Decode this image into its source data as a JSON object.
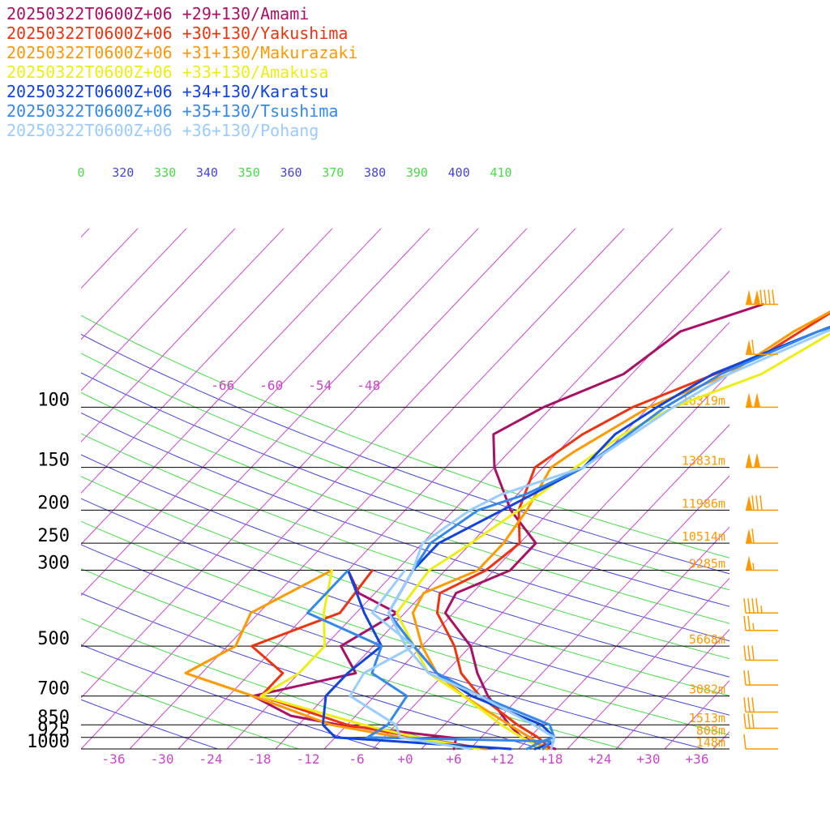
{
  "chart_data": {
    "type": "line",
    "title": "",
    "xlabel": "",
    "ylabel": "",
    "xlim": [
      -40,
      40
    ],
    "ylim": [
      1000,
      50
    ],
    "y_scale": "log",
    "x_ticks": [
      "-36",
      "-30",
      "-24",
      "-18",
      "-12",
      "-6",
      "+0",
      "+6",
      "+12",
      "+18",
      "+24",
      "+30",
      "+36"
    ],
    "x_tick_values": [
      -36,
      -30,
      -24,
      -18,
      -12,
      -6,
      0,
      6,
      12,
      18,
      24,
      30,
      36
    ],
    "pressure_levels": [
      {
        "p": 100,
        "label": "100",
        "height": "16319m"
      },
      {
        "p": 150,
        "label": "150",
        "height": "13831m"
      },
      {
        "p": 200,
        "label": "200",
        "height": "11986m"
      },
      {
        "p": 250,
        "label": "250",
        "height": "10514m"
      },
      {
        "p": 300,
        "label": "300",
        "height": "9285m"
      },
      {
        "p": 500,
        "label": "500",
        "height": "5668m"
      },
      {
        "p": 700,
        "label": "700",
        "height": "3082m"
      },
      {
        "p": 850,
        "label": "850",
        "height": "1513m"
      },
      {
        "p": 925,
        "label": "925",
        "height": "808m"
      },
      {
        "p": 1000,
        "label": "1000",
        "height": "148m"
      }
    ],
    "isotherm_labels": [
      {
        "t": -66,
        "label": "-66"
      },
      {
        "t": -60,
        "label": "-60"
      },
      {
        "t": -54,
        "label": "-54"
      },
      {
        "t": -48,
        "label": "-48"
      }
    ],
    "theta_labels": [
      {
        "label": "0",
        "color": "#44dd44"
      },
      {
        "label": "320",
        "color": "#4444dd"
      },
      {
        "label": "330",
        "color": "#44dd44"
      },
      {
        "label": "340",
        "color": "#4444dd"
      },
      {
        "label": "350",
        "color": "#44dd44"
      },
      {
        "label": "360",
        "color": "#4444dd"
      },
      {
        "label": "370",
        "color": "#44dd44"
      },
      {
        "label": "380",
        "color": "#4444dd"
      },
      {
        "label": "390",
        "color": "#44dd44"
      },
      {
        "label": "400",
        "color": "#4444dd"
      },
      {
        "label": "410",
        "color": "#44dd44"
      }
    ],
    "legend_placement": "top-left",
    "series": [
      {
        "name": "20250322T0600Z+06 +29+130/Amami",
        "color": "#aa1166",
        "temperature": [
          [
            1000,
            18.5
          ],
          [
            970,
            16
          ],
          [
            925,
            13
          ],
          [
            850,
            10
          ],
          [
            700,
            4
          ],
          [
            600,
            0
          ],
          [
            500,
            -4
          ],
          [
            400,
            -11
          ],
          [
            350,
            -12
          ],
          [
            300,
            -8
          ],
          [
            250,
            -8
          ],
          [
            200,
            -15
          ],
          [
            150,
            -22
          ],
          [
            120,
            -26
          ],
          [
            100,
            -23
          ],
          [
            80,
            -17
          ],
          [
            60,
            -15
          ],
          [
            50,
            -8
          ]
        ],
        "dewpoint": [
          [
            1000,
            6
          ],
          [
            930,
            5
          ],
          [
            850,
            -11
          ],
          [
            800,
            -18
          ],
          [
            700,
            -25
          ],
          [
            600,
            -15
          ],
          [
            500,
            -20
          ],
          [
            400,
            -17
          ],
          [
            350,
            -24
          ],
          [
            300,
            -28
          ]
        ]
      },
      {
        "name": "20250322T0600Z+06 +30+130/Yakushima",
        "color": "#ee3311",
        "temperature": [
          [
            1000,
            18
          ],
          [
            925,
            15
          ],
          [
            850,
            11
          ],
          [
            700,
            3
          ],
          [
            600,
            -2
          ],
          [
            500,
            -6
          ],
          [
            400,
            -12
          ],
          [
            350,
            -14
          ],
          [
            300,
            -11
          ],
          [
            250,
            -10
          ],
          [
            200,
            -14
          ],
          [
            150,
            -17
          ],
          [
            120,
            -15
          ],
          [
            100,
            -12
          ],
          [
            70,
            -2
          ],
          [
            50,
            2
          ]
        ],
        "dewpoint": [
          [
            1000,
            10
          ],
          [
            925,
            0
          ],
          [
            850,
            -10
          ],
          [
            700,
            -24
          ],
          [
            600,
            -24
          ],
          [
            500,
            -31
          ],
          [
            400,
            -24
          ],
          [
            300,
            -25
          ]
        ]
      },
      {
        "name": "20250322T0600Z+06 +31+130/Makurazaki",
        "color": "#ff9900",
        "temperature": [
          [
            1000,
            17.5
          ],
          [
            925,
            14
          ],
          [
            850,
            10
          ],
          [
            700,
            1
          ],
          [
            600,
            -5
          ],
          [
            500,
            -10
          ],
          [
            400,
            -15
          ],
          [
            350,
            -16
          ],
          [
            300,
            -12
          ],
          [
            250,
            -12
          ],
          [
            200,
            -13
          ],
          [
            150,
            -15
          ],
          [
            135,
            -14
          ],
          [
            100,
            -10
          ],
          [
            80,
            -4
          ],
          [
            60,
            -1
          ],
          [
            50,
            2
          ]
        ],
        "dewpoint": [
          [
            1000,
            10
          ],
          [
            925,
            -2
          ],
          [
            850,
            -12
          ],
          [
            700,
            -25
          ],
          [
            600,
            -36
          ],
          [
            500,
            -33
          ],
          [
            400,
            -35
          ],
          [
            300,
            -30
          ]
        ]
      },
      {
        "name": "20250322T0600Z+06 +33+130/Amakusa",
        "color": "#eeee11",
        "temperature": [
          [
            1000,
            17
          ],
          [
            925,
            13
          ],
          [
            850,
            9
          ],
          [
            700,
            1
          ],
          [
            600,
            -6
          ],
          [
            500,
            -11
          ],
          [
            400,
            -17
          ],
          [
            300,
            -18
          ],
          [
            250,
            -16
          ],
          [
            200,
            -14
          ],
          [
            150,
            -12
          ],
          [
            120,
            -10
          ],
          [
            100,
            -7
          ],
          [
            80,
            0
          ],
          [
            60,
            4
          ],
          [
            50,
            5
          ]
        ],
        "dewpoint": [
          [
            1000,
            9
          ],
          [
            925,
            0
          ],
          [
            850,
            -8
          ],
          [
            700,
            -24
          ],
          [
            600,
            -22
          ],
          [
            500,
            -22
          ],
          [
            400,
            -26
          ],
          [
            300,
            -30
          ]
        ]
      },
      {
        "name": "20250322T0600Z+06 +34+130/Karatsu",
        "color": "#1144dd",
        "temperature": [
          [
            1000,
            16
          ],
          [
            960,
            17.5
          ],
          [
            925,
            17
          ],
          [
            850,
            14
          ],
          [
            700,
            2
          ],
          [
            600,
            -5
          ],
          [
            500,
            -11
          ],
          [
            400,
            -18
          ],
          [
            300,
            -20
          ],
          [
            250,
            -20
          ],
          [
            200,
            -16
          ],
          [
            150,
            -11
          ],
          [
            120,
            -11
          ],
          [
            100,
            -9
          ],
          [
            80,
            -6
          ],
          [
            60,
            2
          ],
          [
            50,
            8
          ]
        ],
        "dewpoint": [
          [
            1000,
            13
          ],
          [
            925,
            -10
          ],
          [
            850,
            -13
          ],
          [
            700,
            -16
          ],
          [
            600,
            -16
          ],
          [
            500,
            -15
          ],
          [
            400,
            -21
          ],
          [
            300,
            -28
          ]
        ]
      },
      {
        "name": "20250322T0600Z+06 +35+130/Tsushima",
        "color": "#3388ee",
        "temperature": [
          [
            1000,
            15
          ],
          [
            950,
            16
          ],
          [
            925,
            17
          ],
          [
            850,
            15
          ],
          [
            700,
            3
          ],
          [
            600,
            -5
          ],
          [
            500,
            -11
          ],
          [
            400,
            -18
          ],
          [
            300,
            -20
          ],
          [
            250,
            -21
          ],
          [
            200,
            -19
          ],
          [
            180,
            -15
          ],
          [
            150,
            -11
          ],
          [
            100,
            -8
          ],
          [
            80,
            -5
          ],
          [
            60,
            2
          ],
          [
            50,
            10
          ]
        ],
        "dewpoint": [
          [
            1000,
            17
          ],
          [
            950,
            17
          ],
          [
            925,
            -6
          ],
          [
            850,
            -5
          ],
          [
            700,
            -6
          ],
          [
            600,
            -13
          ],
          [
            500,
            -15
          ],
          [
            400,
            -28
          ],
          [
            300,
            -28
          ]
        ]
      },
      {
        "name": "20250322T0600Z+06 +36+130/Pohang",
        "color": "#99ccff",
        "temperature": [
          [
            1000,
            18
          ],
          [
            925,
            17
          ],
          [
            850,
            13
          ],
          [
            700,
            3
          ],
          [
            600,
            -6
          ],
          [
            500,
            -12
          ],
          [
            400,
            -18
          ],
          [
            300,
            -20
          ],
          [
            250,
            -22
          ],
          [
            200,
            -20
          ],
          [
            180,
            -18
          ],
          [
            150,
            -11
          ],
          [
            100,
            -7
          ],
          [
            80,
            -4
          ],
          [
            60,
            3
          ],
          [
            50,
            10
          ]
        ],
        "dewpoint": [
          [
            1000,
            8
          ],
          [
            925,
            -2
          ],
          [
            850,
            -4
          ],
          [
            700,
            -13
          ],
          [
            600,
            -14
          ],
          [
            500,
            -11
          ],
          [
            400,
            -20
          ],
          [
            300,
            -21
          ]
        ]
      }
    ],
    "wind_barbs": [
      {
        "p": 50,
        "dir": 270,
        "speed": 140,
        "color": "#ff9900"
      },
      {
        "p": 70,
        "dir": 270,
        "speed": 60,
        "color": "#ff9900"
      },
      {
        "p": 100,
        "dir": 270,
        "speed": 100,
        "color": "#ff9900"
      },
      {
        "p": 150,
        "dir": 270,
        "speed": 100,
        "color": "#ff9900"
      },
      {
        "p": 200,
        "dir": 270,
        "speed": 80,
        "color": "#ff9900"
      },
      {
        "p": 250,
        "dir": 270,
        "speed": 60,
        "color": "#ff9900"
      },
      {
        "p": 300,
        "dir": 270,
        "speed": 55,
        "color": "#ff9900"
      },
      {
        "p": 400,
        "dir": 260,
        "speed": 45,
        "color": "#ff9900"
      },
      {
        "p": 450,
        "dir": 250,
        "speed": 25,
        "color": "#ff9900"
      },
      {
        "p": 550,
        "dir": 250,
        "speed": 30,
        "color": "#ff9900"
      },
      {
        "p": 650,
        "dir": 260,
        "speed": 20,
        "color": "#ff9900"
      },
      {
        "p": 780,
        "dir": 260,
        "speed": 30,
        "color": "#ff9900"
      },
      {
        "p": 870,
        "dir": 265,
        "speed": 30,
        "color": "#ff9900"
      },
      {
        "p": 1000,
        "dir": 280,
        "speed": 10,
        "color": "#ff9900"
      }
    ],
    "colors": {
      "isobar": "#000000",
      "isotherm": "#cc44cc",
      "dry_adiabat_a": "#4444dd",
      "dry_adiabat_b": "#44dd44",
      "height_label": "#ff9900",
      "tick_label": "#cc44cc",
      "pressure_label": "#000000"
    }
  }
}
